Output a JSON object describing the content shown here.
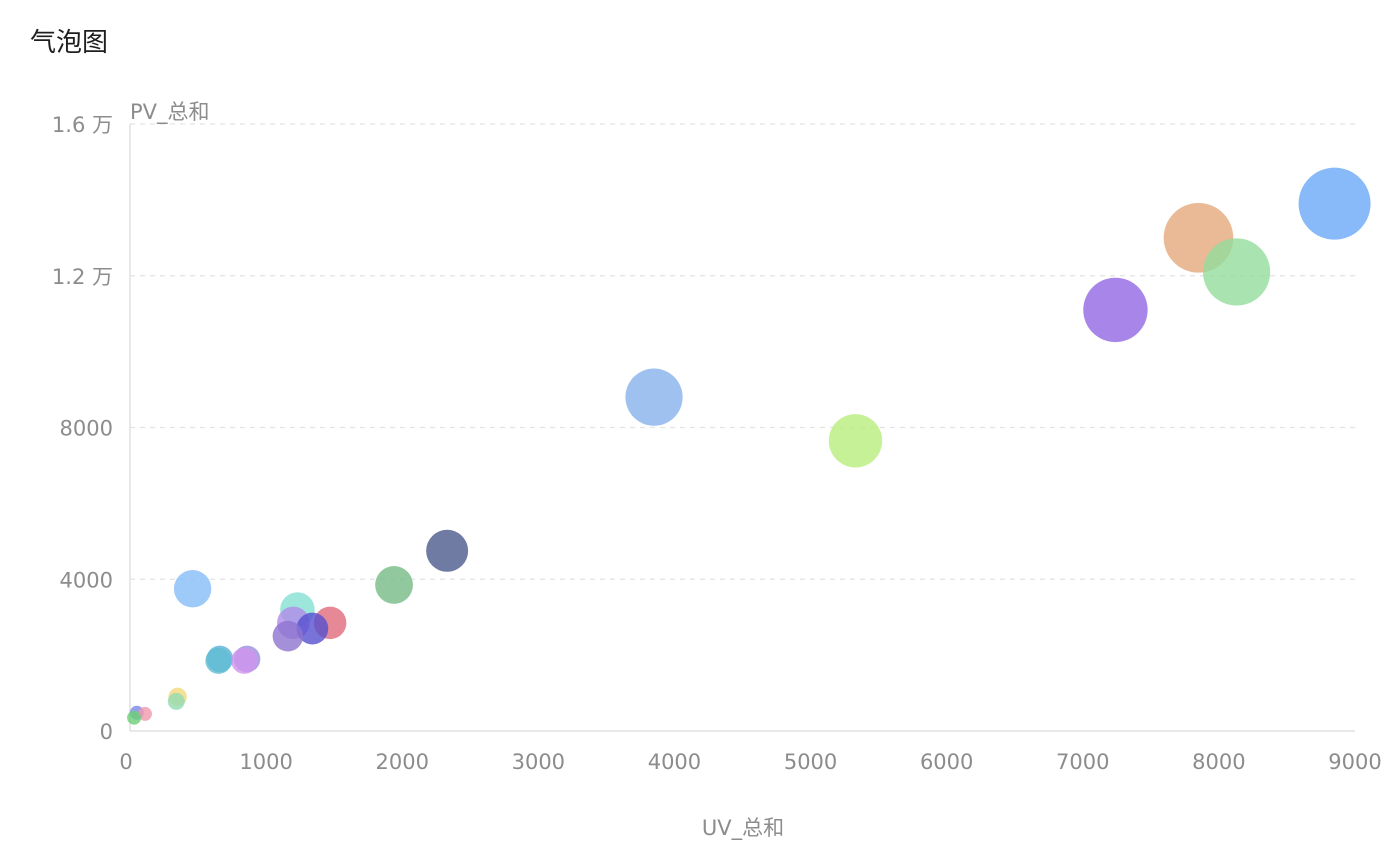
{
  "title": "气泡图",
  "chart_data": {
    "type": "scatter",
    "title": "气泡图",
    "xlabel": "UV_总和",
    "ylabel": "PV_总和",
    "xlim": [
      0,
      9000
    ],
    "ylim": [
      0,
      16000
    ],
    "x_ticks": [
      0,
      1000,
      2000,
      3000,
      4000,
      5000,
      6000,
      7000,
      8000,
      9000
    ],
    "x_tick_labels": [
      "0",
      "1000",
      "2000",
      "3000",
      "4000",
      "5000",
      "6000",
      "7000",
      "8000",
      "9000"
    ],
    "y_ticks": [
      0,
      4000,
      8000,
      12000,
      16000
    ],
    "y_tick_labels": [
      "0",
      "4000",
      "8000",
      "1.2 万",
      "1.6 万"
    ],
    "grid": "horizontal-dashed",
    "size_field": "bubble size proportional to PV",
    "points": [
      {
        "x": 8850,
        "y": 13900,
        "size": 13900,
        "color": "#6aa7f8"
      },
      {
        "x": 7850,
        "y": 13000,
        "size": 13000,
        "color": "#e4a97b"
      },
      {
        "x": 8130,
        "y": 12100,
        "size": 12100,
        "color": "#92dc9c"
      },
      {
        "x": 7240,
        "y": 11100,
        "size": 11100,
        "color": "#9266e2"
      },
      {
        "x": 3850,
        "y": 8800,
        "size": 8800,
        "color": "#86b2ec"
      },
      {
        "x": 5330,
        "y": 7650,
        "size": 7650,
        "color": "#b9ee7d"
      },
      {
        "x": 2330,
        "y": 4750,
        "size": 4750,
        "color": "#4b5a8c"
      },
      {
        "x": 1940,
        "y": 3850,
        "size": 3850,
        "color": "#77ba85"
      },
      {
        "x": 1230,
        "y": 3200,
        "size": 3200,
        "color": "#83e0d2"
      },
      {
        "x": 1470,
        "y": 2850,
        "size": 2850,
        "color": "#e06a7c"
      },
      {
        "x": 1200,
        "y": 2850,
        "size": 2850,
        "color": "#b08be9"
      },
      {
        "x": 1340,
        "y": 2700,
        "size": 2700,
        "color": "#5650cf"
      },
      {
        "x": 1160,
        "y": 2500,
        "size": 2500,
        "color": "#8c74cf"
      },
      {
        "x": 460,
        "y": 3750,
        "size": 3750,
        "color": "#86bdf8"
      },
      {
        "x": 860,
        "y": 1900,
        "size": 1900,
        "color": "#9b8fe0"
      },
      {
        "x": 840,
        "y": 1850,
        "size": 1850,
        "color": "#cf93ee"
      },
      {
        "x": 660,
        "y": 1900,
        "size": 1900,
        "color": "#5ab3d9"
      },
      {
        "x": 650,
        "y": 1850,
        "size": 1850,
        "color": "#62bcd3"
      },
      {
        "x": 350,
        "y": 900,
        "size": 900,
        "color": "#f3d87a"
      },
      {
        "x": 340,
        "y": 780,
        "size": 780,
        "color": "#94dbb2"
      },
      {
        "x": 110,
        "y": 450,
        "size": 450,
        "color": "#ef9aab"
      },
      {
        "x": 50,
        "y": 480,
        "size": 480,
        "color": "#7a87e6"
      },
      {
        "x": 30,
        "y": 350,
        "size": 350,
        "color": "#6ccf78"
      }
    ]
  }
}
